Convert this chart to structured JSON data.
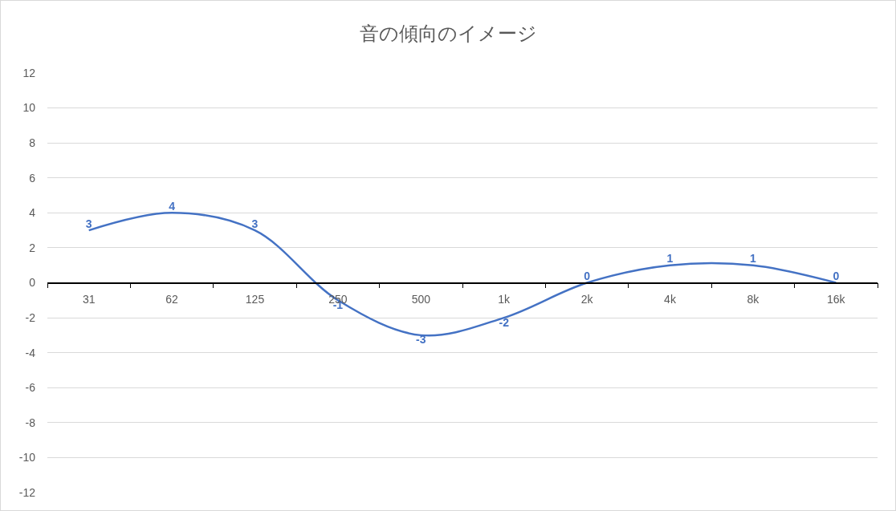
{
  "chart_data": {
    "type": "line",
    "title": "音の傾向のイメージ",
    "categories": [
      "31",
      "62",
      "125",
      "250",
      "500",
      "1k",
      "2k",
      "4k",
      "8k",
      "16k"
    ],
    "series": [
      {
        "color": "#4472c4",
        "values": [
          3,
          4,
          3,
          -1,
          -3,
          -2,
          0,
          1,
          1,
          0
        ]
      }
    ],
    "ylim": [
      -12,
      12
    ],
    "yticks": [
      -12,
      -10,
      -8,
      -6,
      -4,
      -2,
      0,
      2,
      4,
      6,
      8,
      10,
      12
    ],
    "grid": "y",
    "legend": false,
    "line_style": "solid",
    "data_labels": true
  }
}
